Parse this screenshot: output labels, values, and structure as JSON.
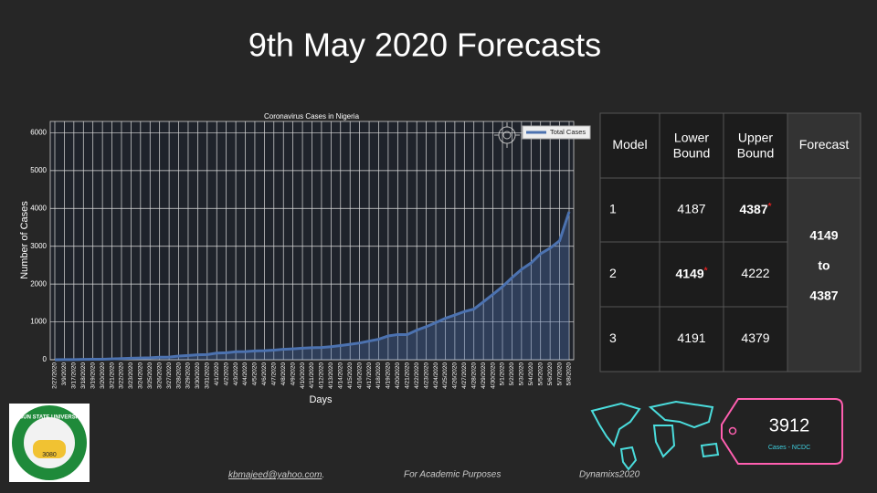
{
  "title": "9th May 2020 Forecasts",
  "chart_data": {
    "type": "line",
    "title": "Coronavirus Cases in Nigeria",
    "x_label": "Days",
    "y_label": "Number of Cases",
    "categories": [
      "2/27/2020",
      "3/9/2020",
      "3/17/2020",
      "3/18/2020",
      "3/19/2020",
      "3/20/2020",
      "3/21/2020",
      "3/22/2020",
      "3/23/2020",
      "3/24/2020",
      "3/25/2020",
      "3/26/2020",
      "3/27/2020",
      "3/28/2020",
      "3/29/2020",
      "3/30/2020",
      "3/31/2020",
      "4/1/2020",
      "4/2/2020",
      "4/3/2020",
      "4/4/2020",
      "4/5/2020",
      "4/6/2020",
      "4/7/2020",
      "4/8/2020",
      "4/9/2020",
      "4/10/2020",
      "4/11/2020",
      "4/12/2020",
      "4/13/2020",
      "4/14/2020",
      "4/15/2020",
      "4/16/2020",
      "4/17/2020",
      "4/18/2020",
      "4/19/2020",
      "4/20/2020",
      "4/21/2020",
      "4/22/2020",
      "4/23/2020",
      "4/24/2020",
      "4/25/2020",
      "4/26/2020",
      "4/27/2020",
      "4/28/2020",
      "4/29/2020",
      "4/30/2020",
      "5/1/2020",
      "5/2/2020",
      "5/3/2020",
      "5/4/2020",
      "5/5/2020",
      "5/6/2020",
      "5/7/2020",
      "5/8/2020"
    ],
    "series": [
      {
        "name": "Total Cases",
        "color": "#4c72b0",
        "values": [
          1,
          2,
          3,
          8,
          12,
          12,
          22,
          30,
          40,
          44,
          51,
          65,
          70,
          97,
          111,
          131,
          135,
          174,
          184,
          210,
          214,
          232,
          238,
          254,
          276,
          288,
          305,
          318,
          323,
          343,
          373,
          407,
          442,
          493,
          542,
          627,
          665,
          665,
          782,
          873,
          981,
          1095,
          1182,
          1273,
          1337,
          1532,
          1728,
          1932,
          2170,
          2388,
          2558,
          2802,
          2950,
          3145,
          3912
        ]
      }
    ],
    "ylim": [
      0,
      6300
    ],
    "yticks": [
      0,
      1000,
      2000,
      3000,
      4000,
      5000,
      6000
    ],
    "grid": true,
    "legend": "upper right"
  },
  "table": {
    "header": [
      "Model",
      "Lower Bound",
      "Upper Bound",
      "Forecast"
    ],
    "rows": [
      [
        "1",
        "4187",
        {
          "text": "4387",
          "mark": "*"
        }
      ],
      [
        "2",
        {
          "text": "4149",
          "mark": "*"
        },
        "4222"
      ],
      [
        "3",
        "4191",
        "4379"
      ]
    ],
    "forecast": [
      "4149",
      "to",
      "4387"
    ]
  },
  "tag": {
    "value": "3912",
    "label": "Cases - NCDC"
  },
  "logo": {
    "name": "OGUN STATE UNIVERSITY",
    "code": "3080"
  },
  "footer": {
    "email": "kbmajeed@yahoo.com",
    "email_suffix": ".",
    "note": "For Academic Purposes",
    "brand": "Dynamixs2020"
  }
}
